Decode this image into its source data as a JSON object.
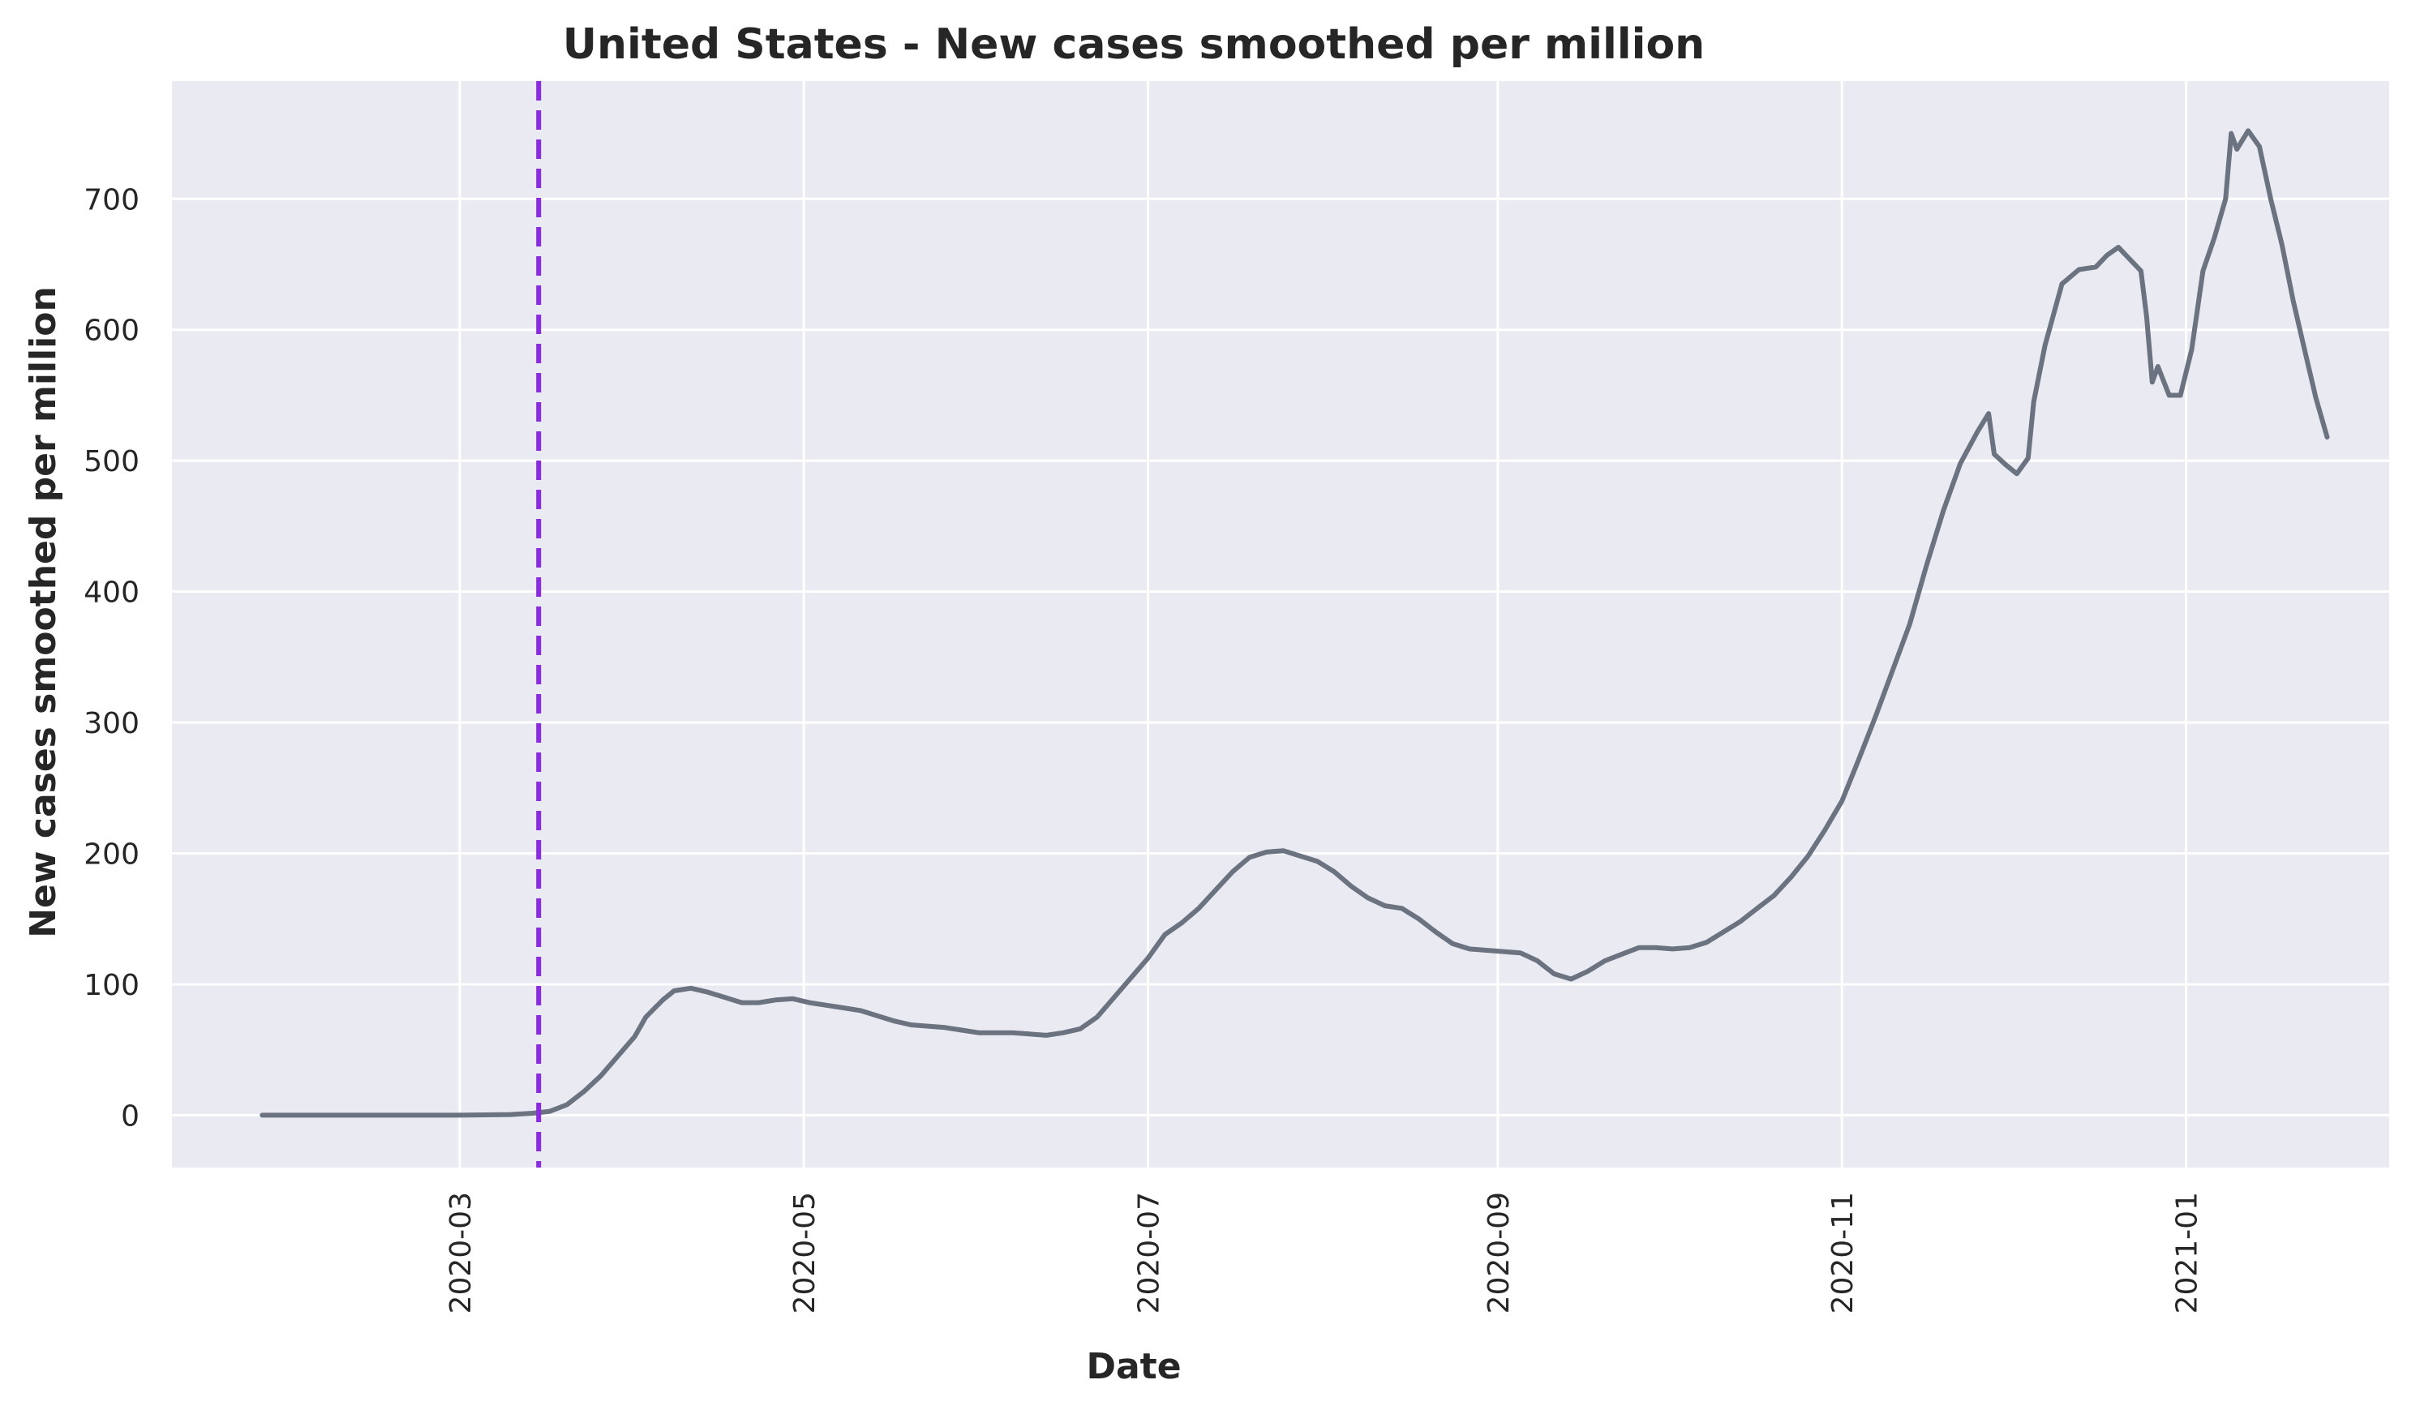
{
  "chart_data": {
    "type": "line",
    "title": "United States - New cases smoothed per million",
    "xlabel": "Date",
    "ylabel": "New cases smoothed per million",
    "x_range": [
      "2020-01-10",
      "2021-02-06"
    ],
    "ylim": [
      -40,
      790
    ],
    "x_ticks": [
      "2020-03-01",
      "2020-05-01",
      "2020-07-01",
      "2020-09-01",
      "2020-11-01",
      "2021-01-01"
    ],
    "x_tick_labels": [
      "2020-03",
      "2020-05",
      "2020-07",
      "2020-09",
      "2020-11",
      "2021-01"
    ],
    "y_ticks": [
      0,
      100,
      200,
      300,
      400,
      500,
      600,
      700
    ],
    "y_tick_labels": [
      "0",
      "100",
      "200",
      "300",
      "400",
      "500",
      "600",
      "700"
    ],
    "grid": true,
    "background": "#eaeaf2",
    "grid_color": "#ffffff",
    "series": [
      {
        "color": "#6b7280",
        "points": [
          [
            "2020-01-26",
            0
          ],
          [
            "2020-02-15",
            0
          ],
          [
            "2020-03-01",
            0
          ],
          [
            "2020-03-10",
            0.5
          ],
          [
            "2020-03-14",
            1.5
          ],
          [
            "2020-03-17",
            3
          ],
          [
            "2020-03-20",
            8
          ],
          [
            "2020-03-23",
            18
          ],
          [
            "2020-03-26",
            30
          ],
          [
            "2020-03-29",
            45
          ],
          [
            "2020-04-01",
            60
          ],
          [
            "2020-04-03",
            75
          ],
          [
            "2020-04-06",
            88
          ],
          [
            "2020-04-08",
            95
          ],
          [
            "2020-04-11",
            97
          ],
          [
            "2020-04-14",
            94
          ],
          [
            "2020-04-17",
            90
          ],
          [
            "2020-04-20",
            86
          ],
          [
            "2020-04-23",
            86
          ],
          [
            "2020-04-26",
            88
          ],
          [
            "2020-04-29",
            89
          ],
          [
            "2020-05-02",
            86
          ],
          [
            "2020-05-05",
            84
          ],
          [
            "2020-05-08",
            82
          ],
          [
            "2020-05-11",
            80
          ],
          [
            "2020-05-14",
            76
          ],
          [
            "2020-05-17",
            72
          ],
          [
            "2020-05-20",
            69
          ],
          [
            "2020-05-23",
            68
          ],
          [
            "2020-05-26",
            67
          ],
          [
            "2020-05-29",
            65
          ],
          [
            "2020-06-01",
            63
          ],
          [
            "2020-06-04",
            63
          ],
          [
            "2020-06-07",
            63
          ],
          [
            "2020-06-10",
            62
          ],
          [
            "2020-06-13",
            61
          ],
          [
            "2020-06-16",
            63
          ],
          [
            "2020-06-19",
            66
          ],
          [
            "2020-06-22",
            75
          ],
          [
            "2020-06-25",
            90
          ],
          [
            "2020-06-28",
            105
          ],
          [
            "2020-07-01",
            120
          ],
          [
            "2020-07-04",
            138
          ],
          [
            "2020-07-07",
            147
          ],
          [
            "2020-07-10",
            158
          ],
          [
            "2020-07-13",
            172
          ],
          [
            "2020-07-16",
            186
          ],
          [
            "2020-07-19",
            197
          ],
          [
            "2020-07-22",
            201
          ],
          [
            "2020-07-25",
            202
          ],
          [
            "2020-07-28",
            198
          ],
          [
            "2020-07-31",
            194
          ],
          [
            "2020-08-03",
            186
          ],
          [
            "2020-08-06",
            175
          ],
          [
            "2020-08-09",
            166
          ],
          [
            "2020-08-12",
            160
          ],
          [
            "2020-08-15",
            158
          ],
          [
            "2020-08-18",
            150
          ],
          [
            "2020-08-21",
            140
          ],
          [
            "2020-08-24",
            131
          ],
          [
            "2020-08-27",
            127
          ],
          [
            "2020-08-30",
            126
          ],
          [
            "2020-09-02",
            125
          ],
          [
            "2020-09-05",
            124
          ],
          [
            "2020-09-08",
            118
          ],
          [
            "2020-09-11",
            108
          ],
          [
            "2020-09-14",
            104
          ],
          [
            "2020-09-17",
            110
          ],
          [
            "2020-09-20",
            118
          ],
          [
            "2020-09-23",
            123
          ],
          [
            "2020-09-26",
            128
          ],
          [
            "2020-09-29",
            128
          ],
          [
            "2020-10-02",
            127
          ],
          [
            "2020-10-05",
            128
          ],
          [
            "2020-10-08",
            132
          ],
          [
            "2020-10-11",
            140
          ],
          [
            "2020-10-14",
            148
          ],
          [
            "2020-10-17",
            158
          ],
          [
            "2020-10-20",
            168
          ],
          [
            "2020-10-23",
            182
          ],
          [
            "2020-10-26",
            198
          ],
          [
            "2020-10-29",
            218
          ],
          [
            "2020-11-01",
            240
          ],
          [
            "2020-11-04",
            272
          ],
          [
            "2020-11-07",
            305
          ],
          [
            "2020-11-10",
            340
          ],
          [
            "2020-11-13",
            375
          ],
          [
            "2020-11-16",
            420
          ],
          [
            "2020-11-19",
            462
          ],
          [
            "2020-11-22",
            498
          ],
          [
            "2020-11-25",
            522
          ],
          [
            "2020-11-27",
            536
          ],
          [
            "2020-11-28",
            505
          ],
          [
            "2020-11-30",
            497
          ],
          [
            "2020-12-02",
            490
          ],
          [
            "2020-12-04",
            502
          ],
          [
            "2020-12-05",
            545
          ],
          [
            "2020-12-07",
            588
          ],
          [
            "2020-12-10",
            635
          ],
          [
            "2020-12-13",
            646
          ],
          [
            "2020-12-16",
            648
          ],
          [
            "2020-12-18",
            657
          ],
          [
            "2020-12-20",
            663
          ],
          [
            "2020-12-22",
            654
          ],
          [
            "2020-12-24",
            645
          ],
          [
            "2020-12-25",
            610
          ],
          [
            "2020-12-26",
            560
          ],
          [
            "2020-12-27",
            572
          ],
          [
            "2020-12-29",
            550
          ],
          [
            "2020-12-31",
            550
          ],
          [
            "2021-01-02",
            585
          ],
          [
            "2021-01-04",
            645
          ],
          [
            "2021-01-06",
            670
          ],
          [
            "2021-01-08",
            700
          ],
          [
            "2021-01-09",
            750
          ],
          [
            "2021-01-10",
            738
          ],
          [
            "2021-01-12",
            752
          ],
          [
            "2021-01-14",
            740
          ],
          [
            "2021-01-16",
            700
          ],
          [
            "2021-01-18",
            665
          ],
          [
            "2021-01-20",
            622
          ],
          [
            "2021-01-22",
            585
          ],
          [
            "2021-01-24",
            548
          ],
          [
            "2021-01-26",
            518
          ]
        ]
      }
    ],
    "annotations": [
      {
        "type": "vline",
        "x": "2020-03-15",
        "color": "#8a2be2",
        "style": "dashed"
      }
    ]
  }
}
